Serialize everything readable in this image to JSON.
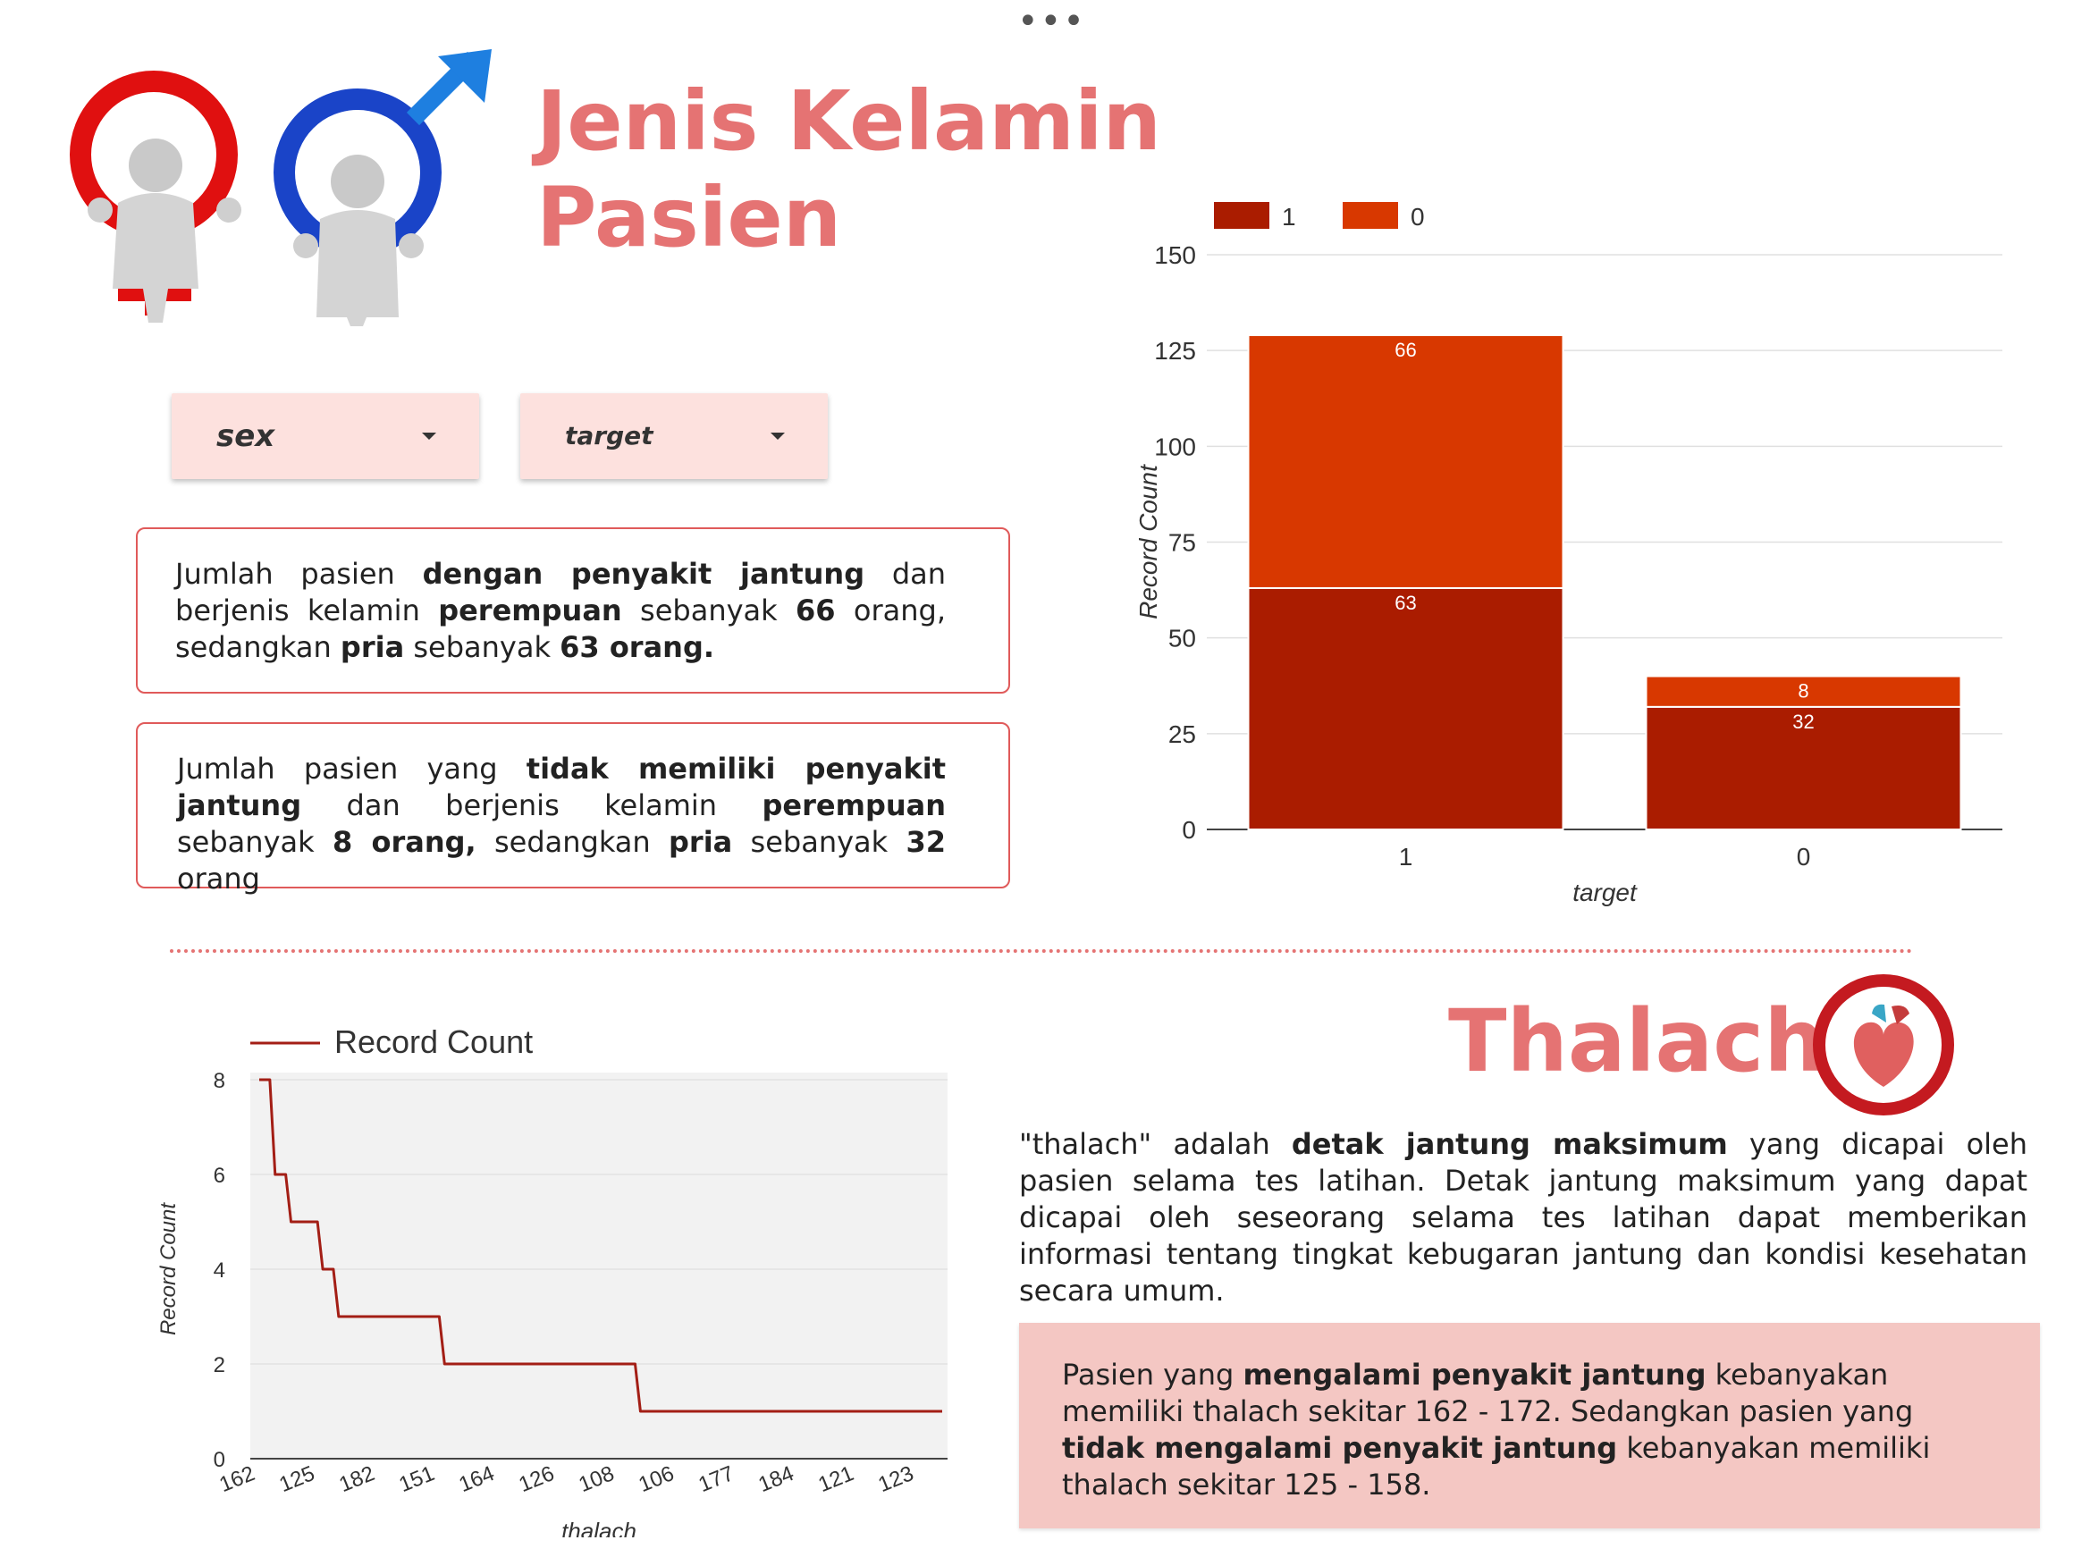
{
  "header": {
    "more_label": "•••",
    "title_line1": "Jenis Kelamin",
    "title_line2": "Pasien"
  },
  "icons": {
    "female": "female-symbol-icon",
    "male": "male-symbol-icon",
    "heart": "heart-icon"
  },
  "colors": {
    "title": "#e57373",
    "bar_series_1": "#aa1c00",
    "bar_series_0": "#d83800",
    "line": "#a31e15",
    "box_border": "#e05a5a",
    "note_bg": "#f4c7c3",
    "dropdown_bg": "#fde1de"
  },
  "filters": {
    "sex_label": "sex",
    "target_label": "target"
  },
  "boxes": {
    "box1": {
      "t1": "Jumlah pasien ",
      "b1": "dengan penyakit jantung",
      "t2": " dan berjenis kelamin ",
      "b2": "perempuan",
      "t3": " sebanyak ",
      "b3": "66",
      "t4": " orang, sedangkan ",
      "b4": "pria",
      "t5": " sebanyak ",
      "b5": "63 orang."
    },
    "box2": {
      "t1": "Jumlah pasien yang ",
      "b1": "tidak memiliki penyakit jantung",
      "t2": " dan berjenis kelamin ",
      "b2": "perempuan",
      "t3": " sebanyak ",
      "b3": "8 orang,",
      "t4": " sedangkan ",
      "b4": "pria",
      "t5": " sebanyak ",
      "b5": "32",
      "t6": " orang"
    }
  },
  "thalach": {
    "title": "Thalach",
    "desc_t1": "\"thalach\" adalah  ",
    "desc_b1": "detak jantung maksimum",
    "desc_t2": " yang dicapai oleh pasien selama tes latihan. Detak jantung maksimum yang dapat dicapai oleh seseorang selama tes latihan dapat memberikan informasi tentang tingkat kebugaran jantung dan kondisi kesehatan secara umum.",
    "note_t1": "Pasien yang ",
    "note_b1": "mengalami penyakit jantung",
    "note_t2": " kebanyakan memiliki thalach sekitar 162 - 172. Sedangkan pasien yang ",
    "note_b2": "tidak mengalami penyakit jantung",
    "note_t3": " kebanyakan memiliki  thalach sekitar 125 - 158."
  },
  "chart_data": [
    {
      "type": "bar",
      "stacked": true,
      "categories": [
        "1",
        "0"
      ],
      "series": [
        {
          "name": "1",
          "values": [
            63,
            32
          ],
          "color": "#aa1c00"
        },
        {
          "name": "0",
          "values": [
            66,
            8
          ],
          "color": "#d83800"
        }
      ],
      "xlabel": "target",
      "ylabel": "Record Count",
      "ylim": [
        0,
        150
      ],
      "yticks": [
        0,
        25,
        50,
        75,
        100,
        125,
        150
      ],
      "legend": "top-left",
      "grid": true
    },
    {
      "type": "line",
      "step": true,
      "series": [
        {
          "name": "Record Count",
          "color": "#a31e15",
          "values": [
            8,
            8,
            8,
            6,
            6,
            6,
            5,
            5,
            5,
            5,
            5,
            5,
            4,
            4,
            4,
            3,
            3,
            3,
            3,
            3,
            3,
            3,
            3,
            3,
            3,
            3,
            3,
            3,
            3,
            3,
            3,
            3,
            3,
            3,
            3,
            2,
            2,
            2,
            2,
            2,
            2,
            2,
            2,
            2,
            2,
            2,
            2,
            2,
            2,
            2,
            2,
            2,
            2,
            2,
            2,
            2,
            2,
            2,
            2,
            2,
            2,
            2,
            2,
            2,
            2,
            2,
            2,
            2,
            2,
            2,
            2,
            2,
            1,
            1,
            1,
            1,
            1,
            1,
            1,
            1,
            1,
            1,
            1,
            1,
            1,
            1,
            1,
            1,
            1,
            1,
            1,
            1,
            1,
            1,
            1,
            1,
            1,
            1,
            1,
            1,
            1,
            1,
            1,
            1,
            1,
            1,
            1,
            1,
            1,
            1,
            1,
            1,
            1,
            1,
            1,
            1,
            1,
            1,
            1,
            1,
            1,
            1,
            1,
            1,
            1,
            1,
            1,
            1,
            1,
            1
          ]
        }
      ],
      "x_tick_labels": [
        "162",
        "125",
        "182",
        "151",
        "164",
        "126",
        "108",
        "106",
        "177",
        "184",
        "121",
        "123"
      ],
      "xlabel": "thalach",
      "ylabel": "Record Count",
      "ylim": [
        0,
        8
      ],
      "yticks": [
        0,
        2,
        4,
        6,
        8
      ],
      "legend": "top-left",
      "grid": true
    }
  ]
}
